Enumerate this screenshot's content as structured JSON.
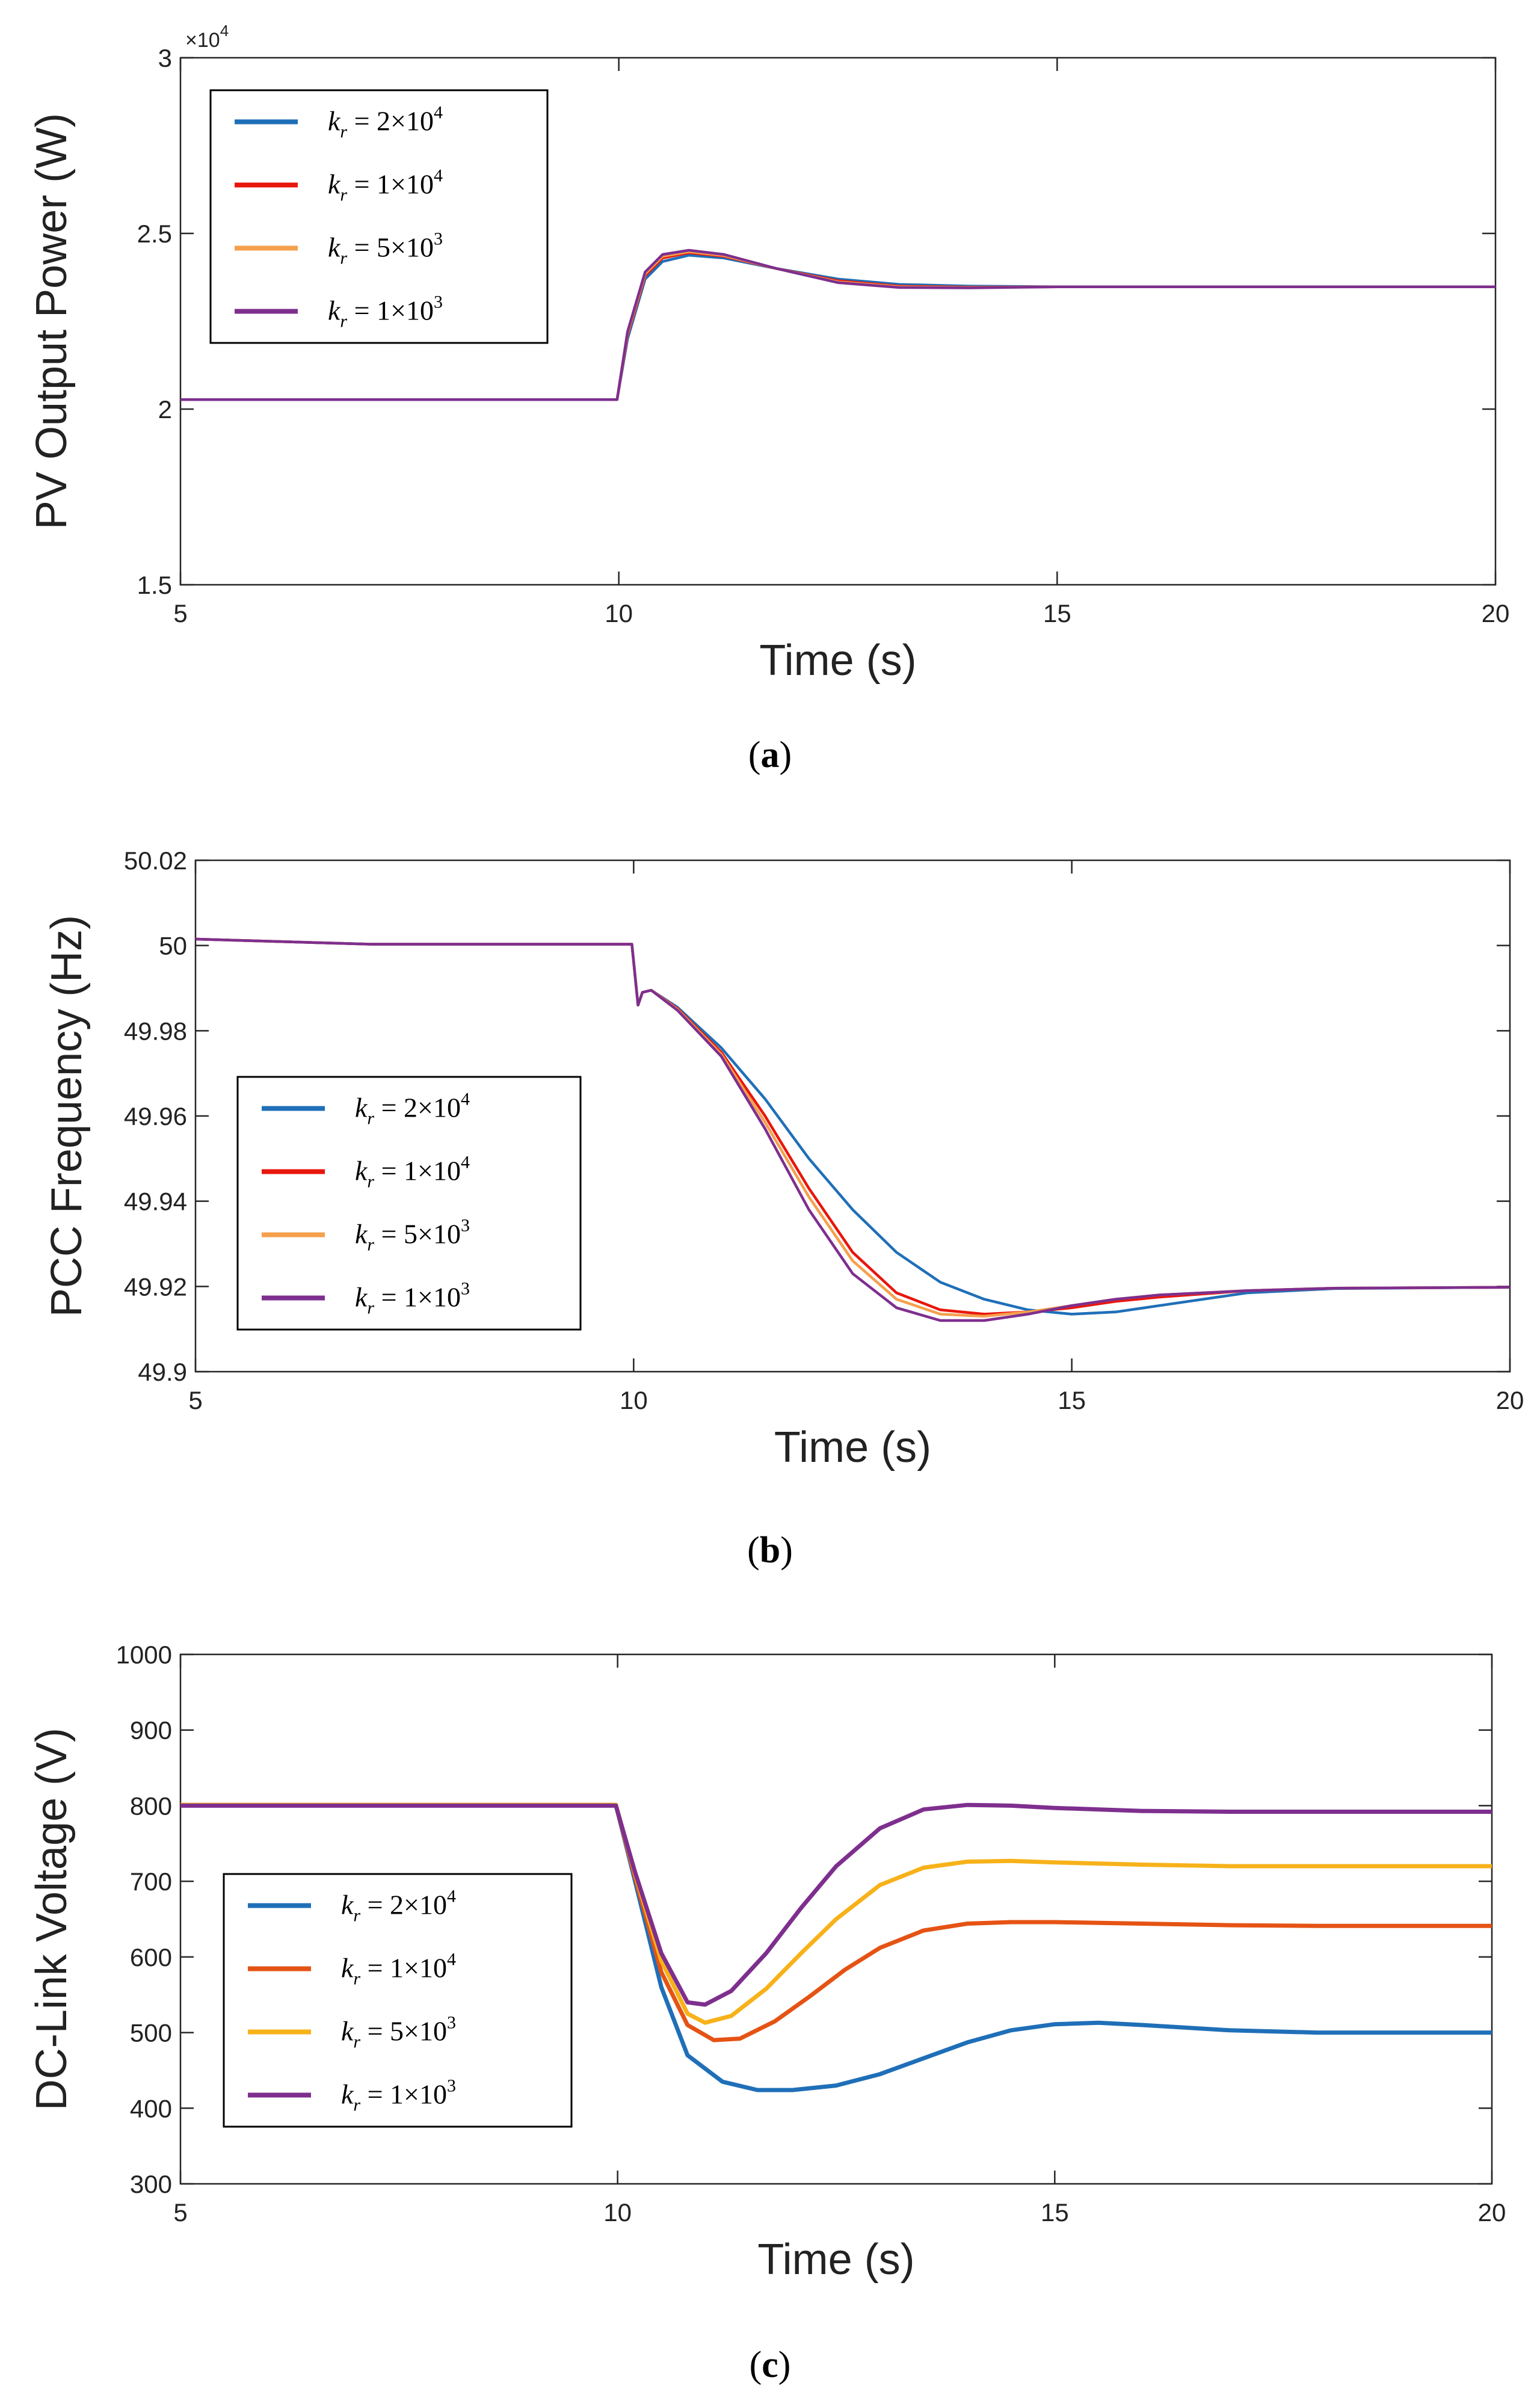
{
  "figure": {
    "captions": [
      "(a)",
      "(b)",
      "(c)"
    ]
  },
  "legend": {
    "entries": [
      {
        "prefix": "k",
        "sub": "r",
        "eq": " = 2×10",
        "sup": "4"
      },
      {
        "prefix": "k",
        "sub": "r",
        "eq": " = 1×10",
        "sup": "4"
      },
      {
        "prefix": "k",
        "sub": "r",
        "eq": " = 5×10",
        "sup": "3"
      },
      {
        "prefix": "k",
        "sub": "r",
        "eq": " = 1×10",
        "sup": "3"
      }
    ]
  },
  "chart_data": [
    {
      "type": "line",
      "panel": "(a)",
      "title": "",
      "xlabel": "Time (s)",
      "ylabel": "PV Output Power (W)",
      "y_exponent_label": "×10",
      "y_exponent_power": "4",
      "xlim": [
        5,
        20
      ],
      "ylim": [
        1.5,
        3
      ],
      "xticks": [
        5,
        10,
        15,
        20
      ],
      "xtick_labels": [
        "5",
        "10",
        "15",
        "20"
      ],
      "yticks": [
        1.5,
        2,
        2.5,
        3
      ],
      "ytick_labels": [
        "1.5",
        "2",
        "2.5",
        "3"
      ],
      "legend_position": "top-left",
      "series": [
        {
          "name": "kr = 2×10^4",
          "color": "#1f6fb8",
          "x": [
            5,
            9.98,
            10.1,
            10.3,
            10.5,
            10.8,
            11.2,
            11.8,
            12.5,
            13.2,
            14,
            15,
            17,
            20
          ],
          "y": [
            2.027,
            2.027,
            2.2,
            2.37,
            2.42,
            2.438,
            2.43,
            2.4,
            2.37,
            2.355,
            2.35,
            2.348,
            2.348,
            2.348
          ]
        },
        {
          "name": "kr = 1×10^4",
          "color": "#e8160c",
          "x": [
            5,
            9.98,
            10.1,
            10.3,
            10.5,
            10.8,
            11.2,
            11.8,
            12.5,
            13.2,
            14,
            15,
            17,
            20
          ],
          "y": [
            2.027,
            2.027,
            2.21,
            2.38,
            2.43,
            2.445,
            2.435,
            2.4,
            2.365,
            2.35,
            2.347,
            2.348,
            2.348,
            2.348
          ]
        },
        {
          "name": "kr = 5×10^3",
          "color": "#f5a04c",
          "x": [
            5,
            9.98,
            10.1,
            10.3,
            10.5,
            10.8,
            11.2,
            11.8,
            12.5,
            13.2,
            14,
            15,
            17,
            20
          ],
          "y": [
            2.027,
            2.027,
            2.215,
            2.385,
            2.435,
            2.448,
            2.437,
            2.4,
            2.362,
            2.348,
            2.346,
            2.348,
            2.348,
            2.348
          ]
        },
        {
          "name": "kr = 1×10^3",
          "color": "#7e2f8e",
          "x": [
            5,
            9.98,
            10.1,
            10.3,
            10.5,
            10.8,
            11.2,
            11.8,
            12.5,
            13.2,
            14,
            15,
            17,
            20
          ],
          "y": [
            2.027,
            2.027,
            2.22,
            2.39,
            2.44,
            2.452,
            2.44,
            2.4,
            2.36,
            2.346,
            2.345,
            2.348,
            2.348,
            2.348
          ]
        }
      ]
    },
    {
      "type": "line",
      "panel": "(b)",
      "title": "",
      "xlabel": "Time (s)",
      "ylabel": "PCC Frequency (Hz)",
      "xlim": [
        5,
        20
      ],
      "ylim": [
        49.9,
        50.02
      ],
      "xticks": [
        5,
        10,
        15,
        20
      ],
      "xtick_labels": [
        "5",
        "10",
        "15",
        "20"
      ],
      "yticks": [
        49.9,
        49.92,
        49.94,
        49.96,
        49.98,
        50,
        50.02
      ],
      "ytick_labels": [
        "49.9",
        "49.92",
        "49.94",
        "49.96",
        "49.98",
        "50",
        "50.02"
      ],
      "legend_position": "center-left",
      "series": [
        {
          "name": "kr = 2×10^4",
          "color": "#1f6fb8",
          "x": [
            5,
            7,
            9.98,
            10.05,
            10.1,
            10.2,
            10.5,
            11,
            11.5,
            12,
            12.5,
            13,
            13.5,
            14,
            14.5,
            15,
            15.5,
            16,
            17,
            18,
            20
          ],
          "y": [
            50.0015,
            50.0003,
            50.0003,
            49.986,
            49.989,
            49.9895,
            49.9855,
            49.976,
            49.964,
            49.95,
            49.938,
            49.928,
            49.921,
            49.917,
            49.9145,
            49.9135,
            49.914,
            49.9155,
            49.9185,
            49.9195,
            49.9198
          ]
        },
        {
          "name": "kr = 1×10^4",
          "color": "#e8160c",
          "x": [
            5,
            7,
            9.98,
            10.05,
            10.1,
            10.2,
            10.5,
            11,
            11.5,
            12,
            12.5,
            13,
            13.5,
            14,
            14.5,
            15,
            15.5,
            16,
            17,
            18,
            20
          ],
          "y": [
            50.0015,
            50.0003,
            50.0003,
            49.986,
            49.989,
            49.9895,
            49.9852,
            49.975,
            49.96,
            49.943,
            49.928,
            49.9185,
            49.9145,
            49.9135,
            49.914,
            49.915,
            49.9165,
            49.9175,
            49.919,
            49.9196,
            49.9198
          ]
        },
        {
          "name": "kr = 5×10^3",
          "color": "#f5a04c",
          "x": [
            5,
            7,
            9.98,
            10.05,
            10.1,
            10.2,
            10.5,
            11,
            11.5,
            12,
            12.5,
            13,
            13.5,
            14,
            14.5,
            15,
            15.5,
            16,
            17,
            18,
            20
          ],
          "y": [
            50.0015,
            50.0003,
            50.0003,
            49.986,
            49.989,
            49.9895,
            49.985,
            49.9745,
            49.9585,
            49.941,
            49.926,
            49.917,
            49.9135,
            49.913,
            49.914,
            49.9155,
            49.917,
            49.918,
            49.919,
            49.9196,
            49.9198
          ]
        },
        {
          "name": "kr = 1×10^3",
          "color": "#7e2f8e",
          "x": [
            5,
            7,
            9.98,
            10.05,
            10.1,
            10.2,
            10.5,
            11,
            11.5,
            12,
            12.5,
            13,
            13.5,
            14,
            14.5,
            15,
            15.5,
            16,
            17,
            18,
            20
          ],
          "y": [
            50.0015,
            50.0003,
            50.0003,
            49.986,
            49.989,
            49.9895,
            49.9848,
            49.974,
            49.957,
            49.938,
            49.923,
            49.915,
            49.912,
            49.912,
            49.9135,
            49.9155,
            49.917,
            49.918,
            49.919,
            49.9196,
            49.9198
          ]
        }
      ]
    },
    {
      "type": "line",
      "panel": "(c)",
      "title": "",
      "xlabel": "Time (s)",
      "ylabel": "DC-Link Voltage (V)",
      "xlim": [
        5,
        20
      ],
      "ylim": [
        300,
        1000
      ],
      "xticks": [
        5,
        10,
        15,
        20
      ],
      "xtick_labels": [
        "5",
        "10",
        "15",
        "20"
      ],
      "yticks": [
        300,
        400,
        500,
        600,
        700,
        800,
        900,
        1000
      ],
      "ytick_labels": [
        "300",
        "400",
        "500",
        "600",
        "700",
        "800",
        "900",
        "1000"
      ],
      "legend_position": "center-left",
      "series": [
        {
          "name": "kr = 2×10^4",
          "color": "#1f6fb8",
          "x": [
            5,
            9.98,
            10.2,
            10.5,
            10.8,
            11.2,
            11.6,
            12,
            12.5,
            13,
            13.5,
            14,
            14.5,
            15,
            15.5,
            16,
            17,
            18,
            20
          ],
          "y": [
            801,
            801,
            700,
            560,
            470,
            435,
            424,
            424,
            430,
            445,
            466,
            487,
            503,
            511,
            513,
            510,
            503,
            500,
            500
          ]
        },
        {
          "name": "kr = 1×10^4",
          "color": "#e55314",
          "x": [
            5,
            9.98,
            10.2,
            10.5,
            10.8,
            11.1,
            11.4,
            11.8,
            12.2,
            12.6,
            13,
            13.5,
            14,
            14.5,
            15,
            16,
            17,
            18,
            20
          ],
          "y": [
            801,
            801,
            705,
            580,
            510,
            490,
            492,
            515,
            548,
            583,
            612,
            635,
            644,
            646,
            646,
            644,
            642,
            641,
            641
          ]
        },
        {
          "name": "kr = 5×10^3",
          "color": "#f7b21a",
          "x": [
            5,
            9.98,
            10.2,
            10.5,
            10.8,
            11,
            11.3,
            11.7,
            12.1,
            12.5,
            13,
            13.5,
            14,
            14.5,
            15,
            16,
            17,
            18,
            20
          ],
          "y": [
            801,
            801,
            710,
            595,
            525,
            513,
            522,
            558,
            605,
            650,
            695,
            718,
            726,
            727,
            725,
            722,
            720,
            720,
            720
          ]
        },
        {
          "name": "kr = 1×10^3",
          "color": "#7e2f8e",
          "x": [
            5,
            9.98,
            10.2,
            10.5,
            10.8,
            11,
            11.3,
            11.7,
            12.1,
            12.5,
            13,
            13.5,
            14,
            14.5,
            15,
            16,
            17,
            18,
            20
          ],
          "y": [
            800,
            800,
            712,
            605,
            540,
            537,
            555,
            605,
            665,
            720,
            770,
            795,
            801,
            800,
            797,
            793,
            792,
            792,
            792
          ]
        }
      ]
    }
  ]
}
